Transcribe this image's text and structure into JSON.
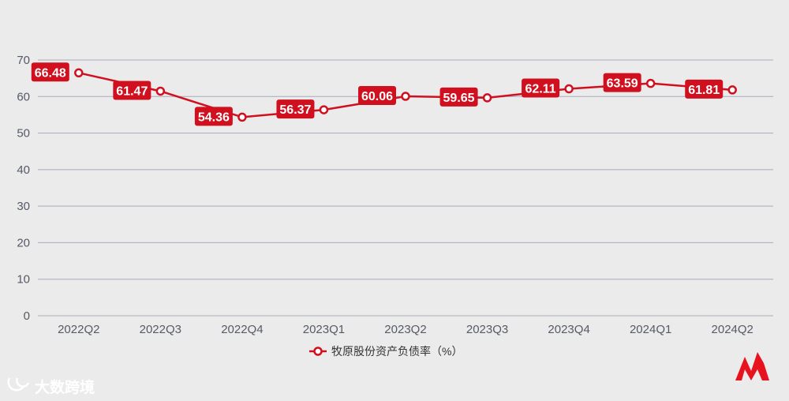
{
  "chart_data": {
    "type": "line",
    "categories": [
      "2022Q2",
      "2022Q3",
      "2022Q4",
      "2023Q1",
      "2023Q2",
      "2023Q3",
      "2023Q4",
      "2024Q1",
      "2024Q2"
    ],
    "series": [
      {
        "name": "牧原股份资产负债率（%）",
        "values": [
          66.48,
          61.47,
          54.36,
          56.37,
          60.06,
          59.65,
          62.11,
          63.59,
          61.81
        ],
        "labels": [
          "66.48",
          "61.47",
          "54.36",
          "56.37",
          "60.06",
          "59.65",
          "62.11",
          "63.59",
          "61.81"
        ],
        "color": "#d0101f"
      }
    ],
    "yticks": [
      "0",
      "10",
      "20",
      "30",
      "40",
      "50",
      "60",
      "70"
    ],
    "ylim": [
      0,
      70
    ],
    "grid": true,
    "legend_position": "bottom-center"
  },
  "colors": {
    "background": "#ebebeb",
    "grid": "#a8abbb",
    "series": "#d0101f"
  },
  "watermark": {
    "text": "大数跨境",
    "icon": "dashuju-logo-icon"
  },
  "brand_logo": {
    "icon": "m-logo-icon"
  }
}
